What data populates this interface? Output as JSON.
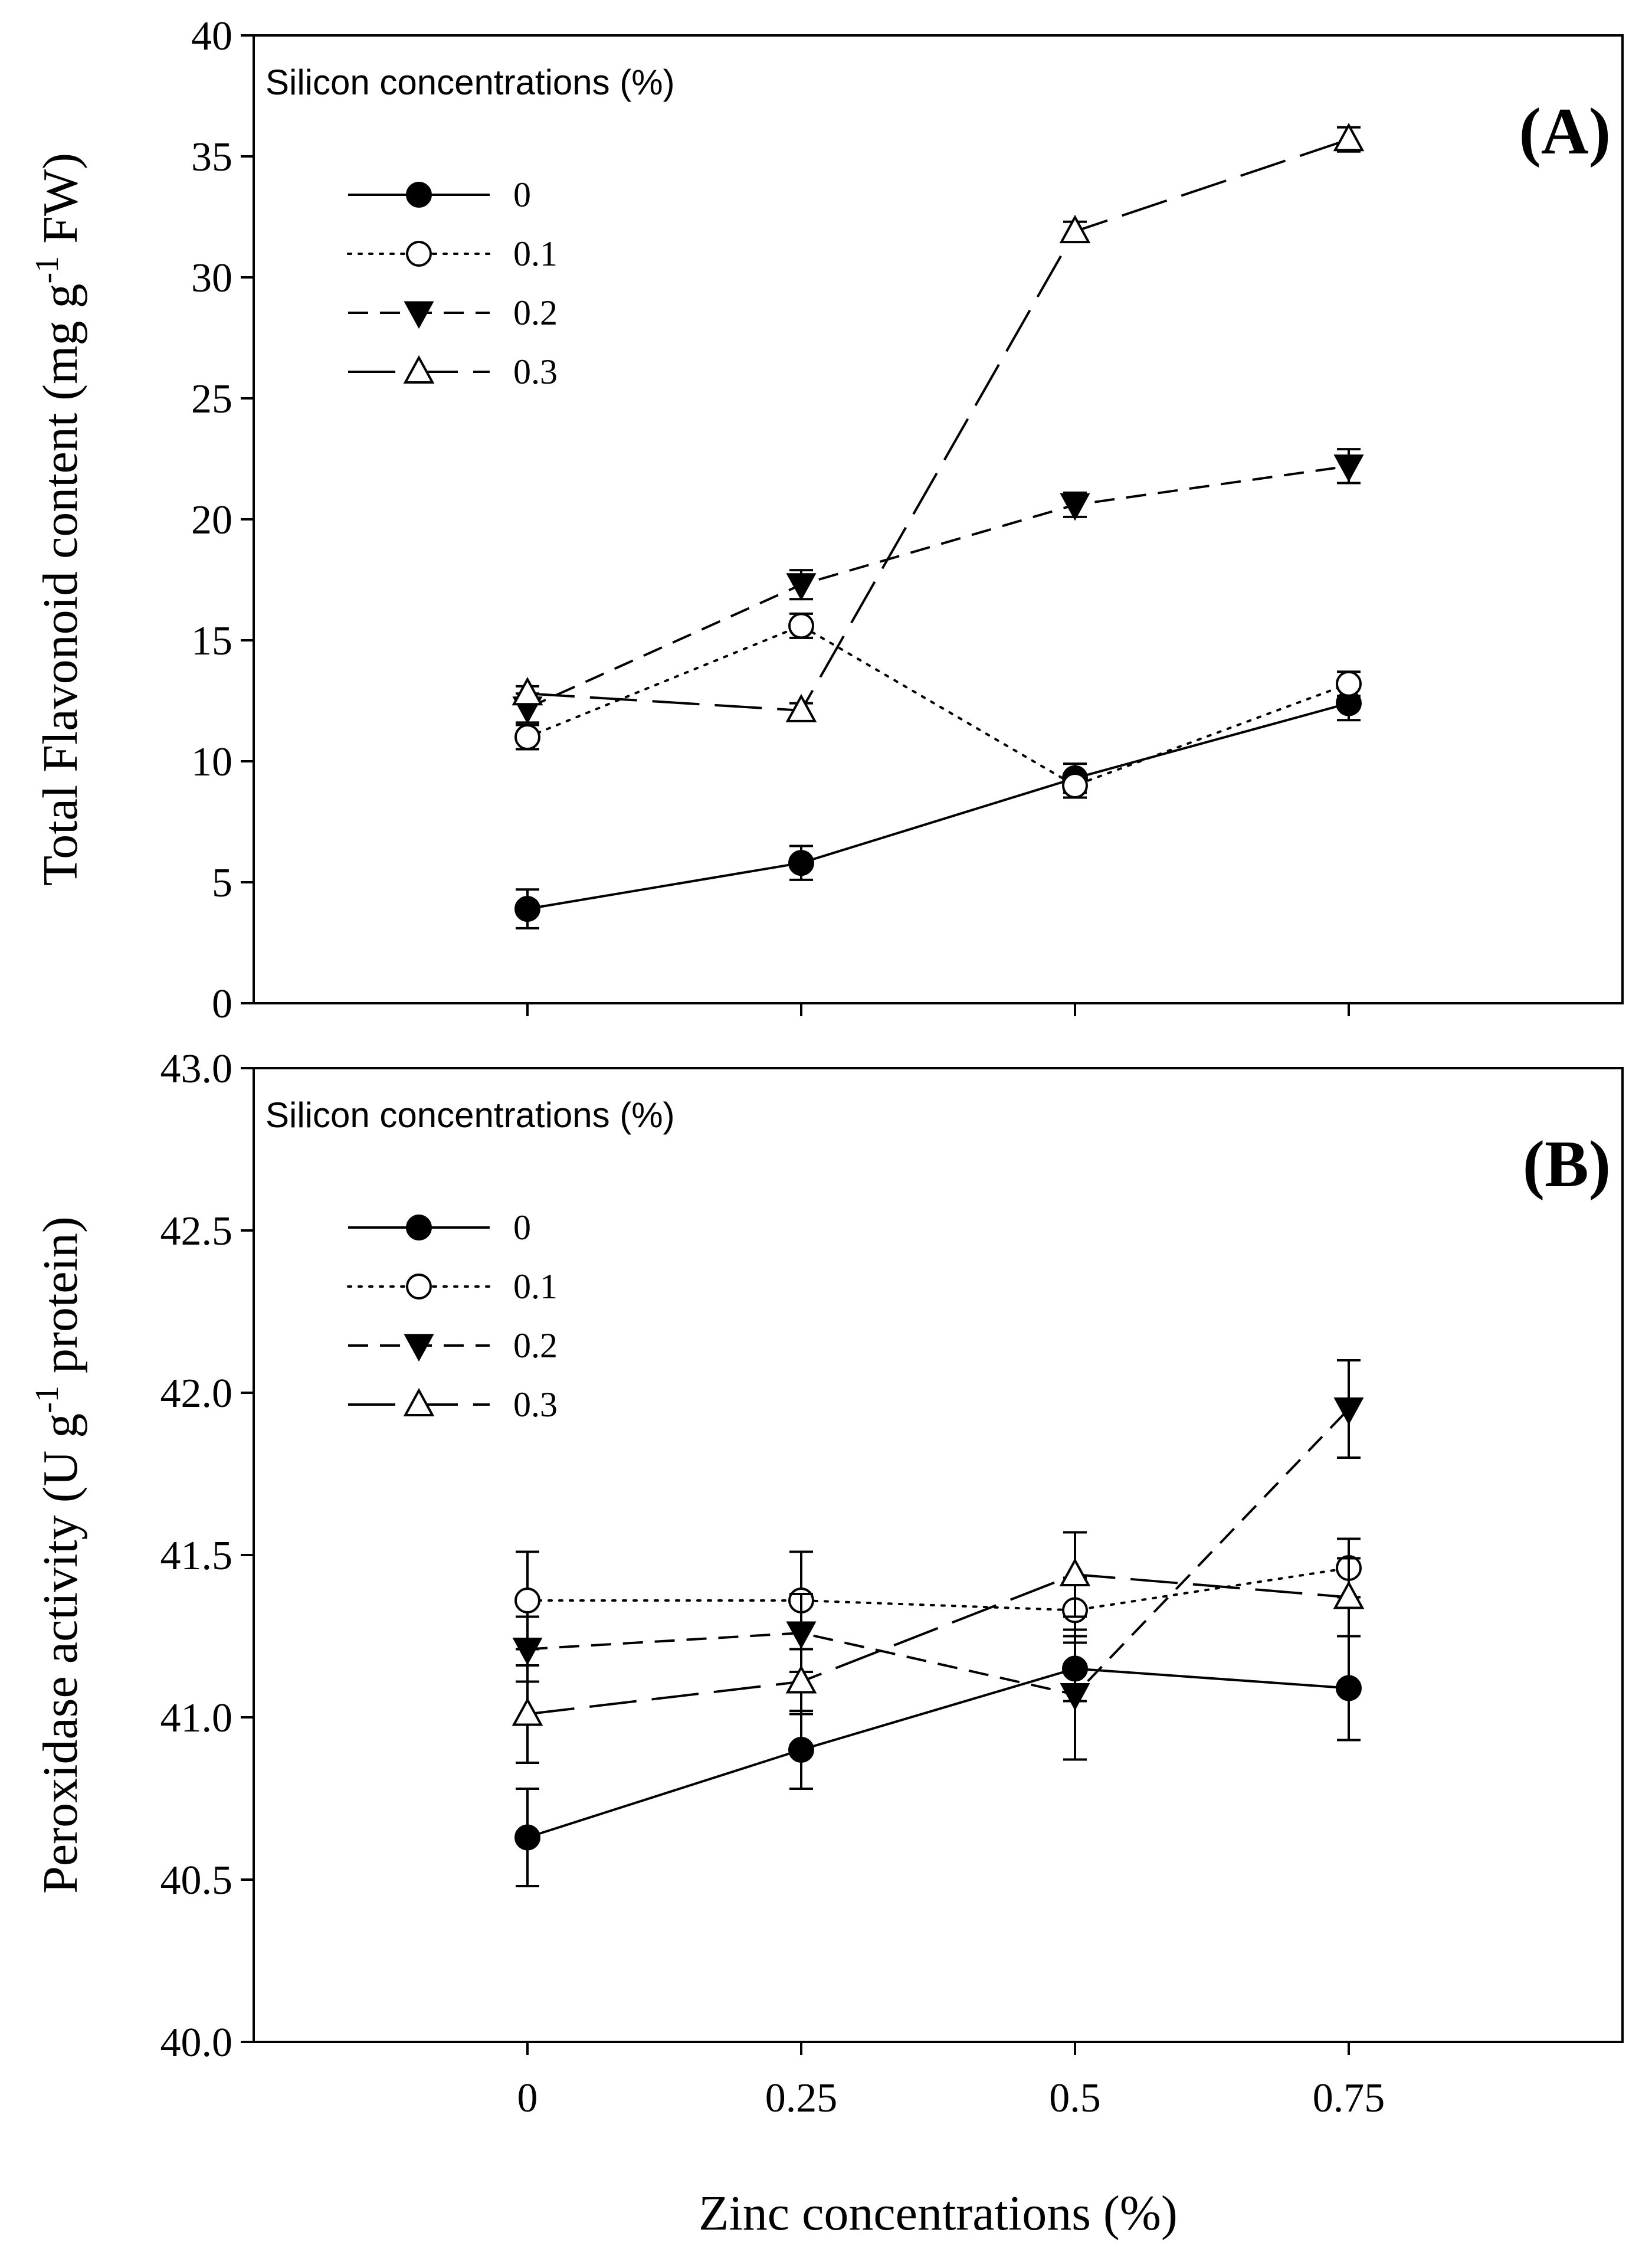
{
  "figure": {
    "shared_xlabel": "Zinc concentrations (%)"
  },
  "chart_data": [
    {
      "type": "line",
      "panel_label": "(A)",
      "title": "",
      "xlabel": "Zinc concentrations (%)",
      "ylabel": "Total Flavonoid content (mg g-1 FW)",
      "ylabel_parts": {
        "main": "Total Flavonoid content (mg g",
        "sup": "-1",
        "tail": " FW)"
      },
      "x": [
        0,
        0.25,
        0.5,
        0.75
      ],
      "x_tick_labels": [],
      "xlim": [
        -0.25,
        1.0
      ],
      "ylim": [
        0,
        40
      ],
      "y_ticks": [
        0,
        5,
        10,
        15,
        20,
        25,
        30,
        35,
        40
      ],
      "y_tick_labels": [
        "0",
        "5",
        "10",
        "15",
        "20",
        "25",
        "30",
        "35",
        "40"
      ],
      "grid": false,
      "legend_title": "Silicon concentrations (%)",
      "legend_position": "top-left",
      "series": [
        {
          "name": "0",
          "marker": "circle-filled",
          "line": "solid",
          "values": [
            3.9,
            5.8,
            9.3,
            12.4
          ],
          "errors": [
            0.8,
            0.7,
            0.6,
            0.7
          ]
        },
        {
          "name": "0.1",
          "marker": "circle-open",
          "line": "dotted",
          "values": [
            11.0,
            15.6,
            9.0,
            13.2
          ],
          "errors": [
            0.5,
            0.5,
            0.5,
            0.5
          ]
        },
        {
          "name": "0.2",
          "marker": "triangle-down",
          "line": "dashed",
          "values": [
            12.2,
            17.3,
            20.6,
            22.2
          ],
          "errors": [
            0.6,
            0.6,
            0.5,
            0.7
          ]
        },
        {
          "name": "0.3",
          "marker": "triangle-up-open",
          "line": "long-dash",
          "values": [
            12.8,
            12.1,
            31.9,
            35.7
          ],
          "errors": [
            0.3,
            0.3,
            0.4,
            0.5
          ]
        }
      ]
    },
    {
      "type": "line",
      "panel_label": "(B)",
      "title": "",
      "xlabel": "Zinc concentrations (%)",
      "ylabel": "Peroxidase activity (U g-1 protein)",
      "ylabel_parts": {
        "main": "Peroxidase activity (U g",
        "sup": "-1",
        "tail": " protein)"
      },
      "x": [
        0,
        0.25,
        0.5,
        0.75
      ],
      "x_tick_labels": [
        "0",
        "0.25",
        "0.5",
        "0.75"
      ],
      "xlim": [
        -0.25,
        1.0
      ],
      "ylim": [
        40.0,
        43.0
      ],
      "y_ticks": [
        40.0,
        40.5,
        41.0,
        41.5,
        42.0,
        42.5,
        43.0
      ],
      "y_tick_labels": [
        "40.0",
        "40.5",
        "41.0",
        "41.5",
        "42.0",
        "42.5",
        "43.0"
      ],
      "grid": false,
      "legend_title": "Silicon concentrations (%)",
      "legend_position": "top-left",
      "series": [
        {
          "name": "0",
          "marker": "circle-filled",
          "line": "solid",
          "values": [
            40.63,
            40.9,
            41.15,
            41.09
          ],
          "errors": [
            0.15,
            0.12,
            0.1,
            0.16
          ]
        },
        {
          "name": "0.1",
          "marker": "circle-open",
          "line": "dotted",
          "values": [
            41.36,
            41.36,
            41.33,
            41.46
          ],
          "errors": [
            0.15,
            0.15,
            0.1,
            0.09
          ]
        },
        {
          "name": "0.2",
          "marker": "triangle-down",
          "line": "dashed",
          "values": [
            41.21,
            41.26,
            41.07,
            41.95
          ],
          "errors": [
            0.1,
            0.12,
            0.2,
            0.15
          ]
        },
        {
          "name": "0.3",
          "marker": "triangle-up-open",
          "line": "long-dash",
          "values": [
            41.01,
            41.11,
            41.44,
            41.37
          ],
          "errors": [
            0.15,
            0.1,
            0.13,
            0.12
          ]
        }
      ]
    }
  ]
}
